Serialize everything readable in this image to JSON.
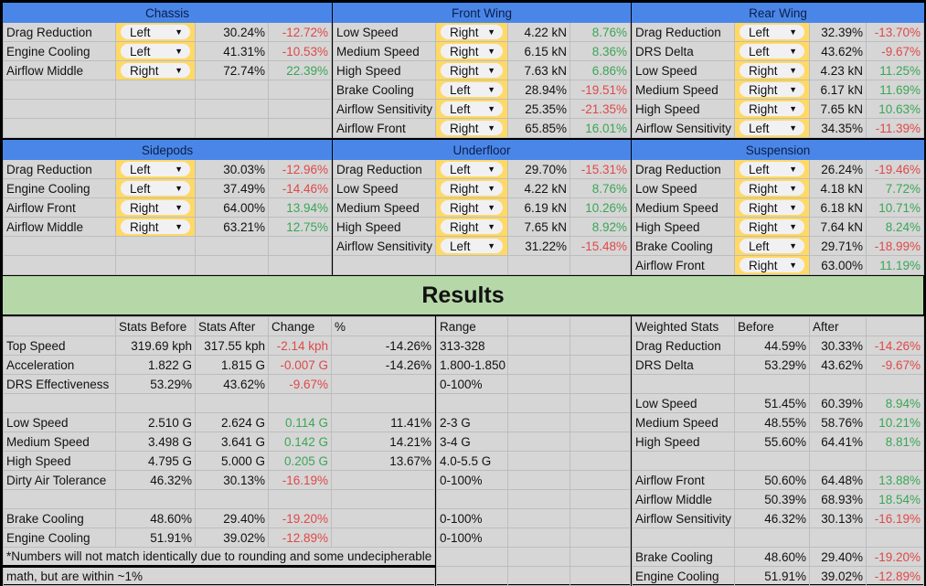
{
  "colors": {
    "header": "#4a86e8",
    "dropdown": "#ffd966",
    "negative": "#e04848",
    "positive": "#3aa655",
    "banner": "#b6d7a8"
  },
  "panels": [
    {
      "title": "Chassis",
      "rows": [
        {
          "label": "Drag Reduction",
          "side": "Left",
          "value": "30.24%",
          "change": "-12.72%"
        },
        {
          "label": "Engine Cooling",
          "side": "Left",
          "value": "41.31%",
          "change": "-10.53%"
        },
        {
          "label": "Airflow Middle",
          "side": "Right",
          "value": "72.74%",
          "change": "22.39%"
        }
      ]
    },
    {
      "title": "Front Wing",
      "rows": [
        {
          "label": "Low Speed",
          "side": "Right",
          "value": "4.22 kN",
          "change": "8.76%"
        },
        {
          "label": "Medium Speed",
          "side": "Right",
          "value": "6.15 kN",
          "change": "8.36%"
        },
        {
          "label": "High Speed",
          "side": "Right",
          "value": "7.63 kN",
          "change": "6.86%"
        },
        {
          "label": "Brake Cooling",
          "side": "Left",
          "value": "28.94%",
          "change": "-19.51%"
        },
        {
          "label": "Airflow Sensitivity",
          "side": "Left",
          "value": "25.35%",
          "change": "-21.35%"
        },
        {
          "label": "Airflow Front",
          "side": "Right",
          "value": "65.85%",
          "change": "16.01%"
        }
      ]
    },
    {
      "title": "Rear Wing",
      "rows": [
        {
          "label": "Drag Reduction",
          "side": "Left",
          "value": "32.39%",
          "change": "-13.70%"
        },
        {
          "label": "DRS Delta",
          "side": "Left",
          "value": "43.62%",
          "change": "-9.67%"
        },
        {
          "label": "Low Speed",
          "side": "Right",
          "value": "4.23 kN",
          "change": "11.25%"
        },
        {
          "label": "Medium Speed",
          "side": "Right",
          "value": "6.17 kN",
          "change": "11.69%"
        },
        {
          "label": "High Speed",
          "side": "Right",
          "value": "7.65 kN",
          "change": "10.63%"
        },
        {
          "label": "Airflow Sensitivity",
          "side": "Left",
          "value": "34.35%",
          "change": "-11.39%"
        }
      ]
    },
    {
      "title": "Sidepods",
      "rows": [
        {
          "label": "Drag Reduction",
          "side": "Left",
          "value": "30.03%",
          "change": "-12.96%"
        },
        {
          "label": "Engine Cooling",
          "side": "Left",
          "value": "37.49%",
          "change": "-14.46%"
        },
        {
          "label": "Airflow Front",
          "side": "Right",
          "value": "64.00%",
          "change": "13.94%"
        },
        {
          "label": "Airflow Middle",
          "side": "Right",
          "value": "63.21%",
          "change": "12.75%"
        }
      ]
    },
    {
      "title": "Underfloor",
      "rows": [
        {
          "label": "Drag Reduction",
          "side": "Left",
          "value": "29.70%",
          "change": "-15.31%"
        },
        {
          "label": "Low Speed",
          "side": "Right",
          "value": "4.22 kN",
          "change": "8.76%"
        },
        {
          "label": "Medium Speed",
          "side": "Right",
          "value": "6.19 kN",
          "change": "10.26%"
        },
        {
          "label": "High Speed",
          "side": "Right",
          "value": "7.65 kN",
          "change": "8.92%"
        },
        {
          "label": "Airflow Sensitivity",
          "side": "Left",
          "value": "31.22%",
          "change": "-15.48%"
        }
      ]
    },
    {
      "title": "Suspension",
      "rows": [
        {
          "label": "Drag Reduction",
          "side": "Left",
          "value": "26.24%",
          "change": "-19.46%"
        },
        {
          "label": "Low Speed",
          "side": "Right",
          "value": "4.18 kN",
          "change": "7.72%"
        },
        {
          "label": "Medium Speed",
          "side": "Right",
          "value": "6.18 kN",
          "change": "10.71%"
        },
        {
          "label": "High Speed",
          "side": "Right",
          "value": "7.64 kN",
          "change": "8.24%"
        },
        {
          "label": "Brake Cooling",
          "side": "Left",
          "value": "29.71%",
          "change": "-18.99%"
        },
        {
          "label": "Airflow Front",
          "side": "Right",
          "value": "63.00%",
          "change": "11.19%"
        }
      ]
    }
  ],
  "results_title": "Results",
  "stats": {
    "headers": [
      "",
      "Stats Before",
      "Stats After",
      "Change",
      "%"
    ],
    "rows": [
      [
        "Top Speed",
        "319.69 kph",
        "317.55 kph",
        "-2.14 kph",
        "-14.26%"
      ],
      [
        "Acceleration",
        "1.822 G",
        "1.815 G",
        "-0.007 G",
        "-14.26%"
      ],
      [
        "DRS Effectiveness",
        "53.29%",
        "43.62%",
        "-9.67%",
        ""
      ],
      [
        "",
        "",
        "",
        "",
        ""
      ],
      [
        "Low Speed",
        "2.510 G",
        "2.624 G",
        "0.114 G",
        "11.41%"
      ],
      [
        "Medium Speed",
        "3.498 G",
        "3.641 G",
        "0.142 G",
        "14.21%"
      ],
      [
        "High Speed",
        "4.795 G",
        "5.000 G",
        "0.205 G",
        "13.67%"
      ],
      [
        "Dirty Air Tolerance",
        "46.32%",
        "30.13%",
        "-16.19%",
        ""
      ],
      [
        "",
        "",
        "",
        "",
        ""
      ],
      [
        "Brake Cooling",
        "48.60%",
        "29.40%",
        "-19.20%",
        ""
      ],
      [
        "Engine Cooling",
        "51.91%",
        "39.02%",
        "-12.89%",
        ""
      ]
    ],
    "footnote_line1": "*Numbers will not match identically due to rounding and some undecipherable",
    "footnote_line2": "math, but are within ~1%"
  },
  "range": {
    "header": "Range",
    "rows": [
      "313-328",
      "1.800-1.850",
      "0-100%",
      "",
      "2-3 G",
      "3-4 G",
      "4.0-5.5 G",
      "0-100%",
      "",
      "0-100%",
      "0-100%",
      "",
      ""
    ]
  },
  "weighted": {
    "headers": [
      "Weighted Stats",
      "Before",
      "After",
      ""
    ],
    "rows": [
      [
        "Drag Reduction",
        "44.59%",
        "30.33%",
        "-14.26%"
      ],
      [
        "DRS Delta",
        "53.29%",
        "43.62%",
        "-9.67%"
      ],
      [
        "",
        "",
        "",
        ""
      ],
      [
        "Low Speed",
        "51.45%",
        "60.39%",
        "8.94%"
      ],
      [
        "Medium Speed",
        "48.55%",
        "58.76%",
        "10.21%"
      ],
      [
        "High Speed",
        "55.60%",
        "64.41%",
        "8.81%"
      ],
      [
        "",
        "",
        "",
        ""
      ],
      [
        "Airflow Front",
        "50.60%",
        "64.48%",
        "13.88%"
      ],
      [
        "Airflow Middle",
        "50.39%",
        "68.93%",
        "18.54%"
      ],
      [
        "Airflow Sensitivity",
        "46.32%",
        "30.13%",
        "-16.19%"
      ],
      [
        "",
        "",
        "",
        ""
      ],
      [
        "Brake Cooling",
        "48.60%",
        "29.40%",
        "-19.20%"
      ],
      [
        "Engine Cooling",
        "51.91%",
        "39.02%",
        "-12.89%"
      ]
    ]
  }
}
